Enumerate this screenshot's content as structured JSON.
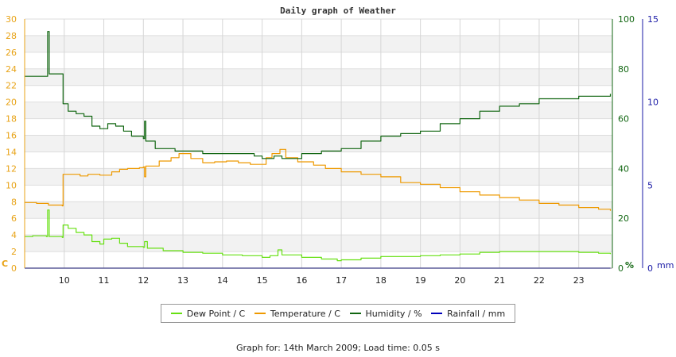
{
  "chart_data": {
    "type": "line",
    "title": "Daily graph of Weather",
    "x_ticks": [
      "10",
      "11",
      "12",
      "13",
      "14",
      "15",
      "16",
      "17",
      "18",
      "19",
      "20",
      "21",
      "22",
      "23"
    ],
    "xlim": [
      9.0,
      23.85
    ],
    "left_axis": {
      "unit": "C",
      "range": [
        0,
        30
      ],
      "ticks": [
        "0",
        "2",
        "4",
        "6",
        "8",
        "10",
        "12",
        "14",
        "16",
        "18",
        "20",
        "22",
        "24",
        "26",
        "28",
        "30"
      ]
    },
    "humidity_axis": {
      "unit": "%",
      "range": [
        0,
        100
      ],
      "ticks": [
        "0",
        "20",
        "40",
        "60",
        "80",
        "100"
      ]
    },
    "rainfall_axis": {
      "unit": "mm",
      "range": [
        0,
        15
      ],
      "ticks": [
        "0",
        "5",
        "10",
        "15"
      ]
    },
    "series": [
      {
        "name": "Dew Point / C",
        "color": "#66e011",
        "axis": "left",
        "points": [
          [
            9.0,
            3.8
          ],
          [
            9.2,
            3.9
          ],
          [
            9.55,
            3.8
          ],
          [
            9.58,
            7.0
          ],
          [
            9.62,
            3.8
          ],
          [
            9.95,
            3.7
          ],
          [
            9.97,
            5.2
          ],
          [
            10.1,
            4.8
          ],
          [
            10.3,
            4.3
          ],
          [
            10.5,
            4.0
          ],
          [
            10.7,
            3.2
          ],
          [
            10.9,
            2.9
          ],
          [
            11.0,
            3.5
          ],
          [
            11.2,
            3.6
          ],
          [
            11.4,
            3.0
          ],
          [
            11.6,
            2.6
          ],
          [
            11.8,
            2.6
          ],
          [
            12.0,
            2.5
          ],
          [
            12.03,
            3.2
          ],
          [
            12.1,
            2.4
          ],
          [
            12.5,
            2.1
          ],
          [
            13.0,
            1.9
          ],
          [
            13.5,
            1.8
          ],
          [
            14.0,
            1.6
          ],
          [
            14.5,
            1.5
          ],
          [
            15.0,
            1.3
          ],
          [
            15.2,
            1.5
          ],
          [
            15.4,
            2.2
          ],
          [
            15.5,
            1.6
          ],
          [
            16.0,
            1.3
          ],
          [
            16.5,
            1.1
          ],
          [
            16.9,
            0.9
          ],
          [
            17.0,
            1.0
          ],
          [
            17.5,
            1.2
          ],
          [
            18.0,
            1.4
          ],
          [
            18.5,
            1.4
          ],
          [
            19.0,
            1.5
          ],
          [
            19.5,
            1.6
          ],
          [
            20.0,
            1.7
          ],
          [
            20.5,
            1.9
          ],
          [
            21.0,
            2.0
          ],
          [
            21.5,
            2.0
          ],
          [
            22.0,
            2.0
          ],
          [
            22.5,
            2.0
          ],
          [
            23.0,
            1.9
          ],
          [
            23.5,
            1.8
          ],
          [
            23.8,
            1.7
          ]
        ]
      },
      {
        "name": "Temperature / C",
        "color": "#ee9900",
        "axis": "left",
        "points": [
          [
            9.0,
            7.9
          ],
          [
            9.3,
            7.8
          ],
          [
            9.6,
            7.6
          ],
          [
            9.95,
            7.5
          ],
          [
            9.97,
            11.3
          ],
          [
            10.1,
            11.3
          ],
          [
            10.4,
            11.1
          ],
          [
            10.6,
            11.3
          ],
          [
            10.9,
            11.2
          ],
          [
            11.2,
            11.6
          ],
          [
            11.4,
            11.9
          ],
          [
            11.6,
            12.0
          ],
          [
            11.9,
            12.1
          ],
          [
            12.0,
            12.2
          ],
          [
            12.03,
            11.0
          ],
          [
            12.06,
            12.3
          ],
          [
            12.4,
            12.9
          ],
          [
            12.7,
            13.3
          ],
          [
            12.9,
            13.8
          ],
          [
            13.2,
            13.2
          ],
          [
            13.5,
            12.7
          ],
          [
            13.8,
            12.8
          ],
          [
            14.1,
            12.9
          ],
          [
            14.4,
            12.7
          ],
          [
            14.7,
            12.5
          ],
          [
            14.95,
            12.5
          ],
          [
            15.1,
            13.3
          ],
          [
            15.25,
            13.8
          ],
          [
            15.45,
            14.3
          ],
          [
            15.6,
            13.3
          ],
          [
            15.9,
            12.8
          ],
          [
            16.3,
            12.4
          ],
          [
            16.6,
            12.0
          ],
          [
            17.0,
            11.6
          ],
          [
            17.5,
            11.3
          ],
          [
            18.0,
            11.0
          ],
          [
            18.5,
            10.3
          ],
          [
            19.0,
            10.1
          ],
          [
            19.5,
            9.7
          ],
          [
            20.0,
            9.2
          ],
          [
            20.5,
            8.8
          ],
          [
            21.0,
            8.5
          ],
          [
            21.5,
            8.2
          ],
          [
            22.0,
            7.8
          ],
          [
            22.5,
            7.6
          ],
          [
            23.0,
            7.3
          ],
          [
            23.5,
            7.1
          ],
          [
            23.8,
            6.9
          ]
        ]
      },
      {
        "name": "Humidity / %",
        "color": "#116611",
        "axis": "humidity",
        "points": [
          [
            9.0,
            77
          ],
          [
            9.3,
            77
          ],
          [
            9.55,
            77
          ],
          [
            9.58,
            95
          ],
          [
            9.62,
            78
          ],
          [
            9.95,
            78
          ],
          [
            9.97,
            66
          ],
          [
            10.1,
            63
          ],
          [
            10.3,
            62
          ],
          [
            10.5,
            61
          ],
          [
            10.7,
            57
          ],
          [
            10.9,
            56
          ],
          [
            11.1,
            58
          ],
          [
            11.3,
            57
          ],
          [
            11.5,
            55
          ],
          [
            11.7,
            53
          ],
          [
            12.0,
            52
          ],
          [
            12.03,
            59
          ],
          [
            12.06,
            51
          ],
          [
            12.3,
            48
          ],
          [
            12.8,
            47
          ],
          [
            13.2,
            47
          ],
          [
            13.5,
            46
          ],
          [
            14.0,
            46
          ],
          [
            14.4,
            46
          ],
          [
            14.8,
            45
          ],
          [
            15.0,
            44
          ],
          [
            15.3,
            45
          ],
          [
            15.5,
            44
          ],
          [
            16.0,
            46
          ],
          [
            16.5,
            47
          ],
          [
            17.0,
            48
          ],
          [
            17.5,
            51
          ],
          [
            18.0,
            53
          ],
          [
            18.5,
            54
          ],
          [
            19.0,
            55
          ],
          [
            19.5,
            58
          ],
          [
            20.0,
            60
          ],
          [
            20.5,
            63
          ],
          [
            21.0,
            65
          ],
          [
            21.5,
            66
          ],
          [
            22.0,
            68
          ],
          [
            22.5,
            68
          ],
          [
            23.0,
            69
          ],
          [
            23.5,
            69
          ],
          [
            23.8,
            70
          ]
        ]
      },
      {
        "name": "Rainfall / mm",
        "color": "#0000bb",
        "axis": "rainfall",
        "points": [
          [
            9.0,
            0
          ],
          [
            23.8,
            0
          ]
        ]
      }
    ],
    "grid": true
  },
  "footer": "Graph for: 14th March 2009; Load time: 0.05 s"
}
